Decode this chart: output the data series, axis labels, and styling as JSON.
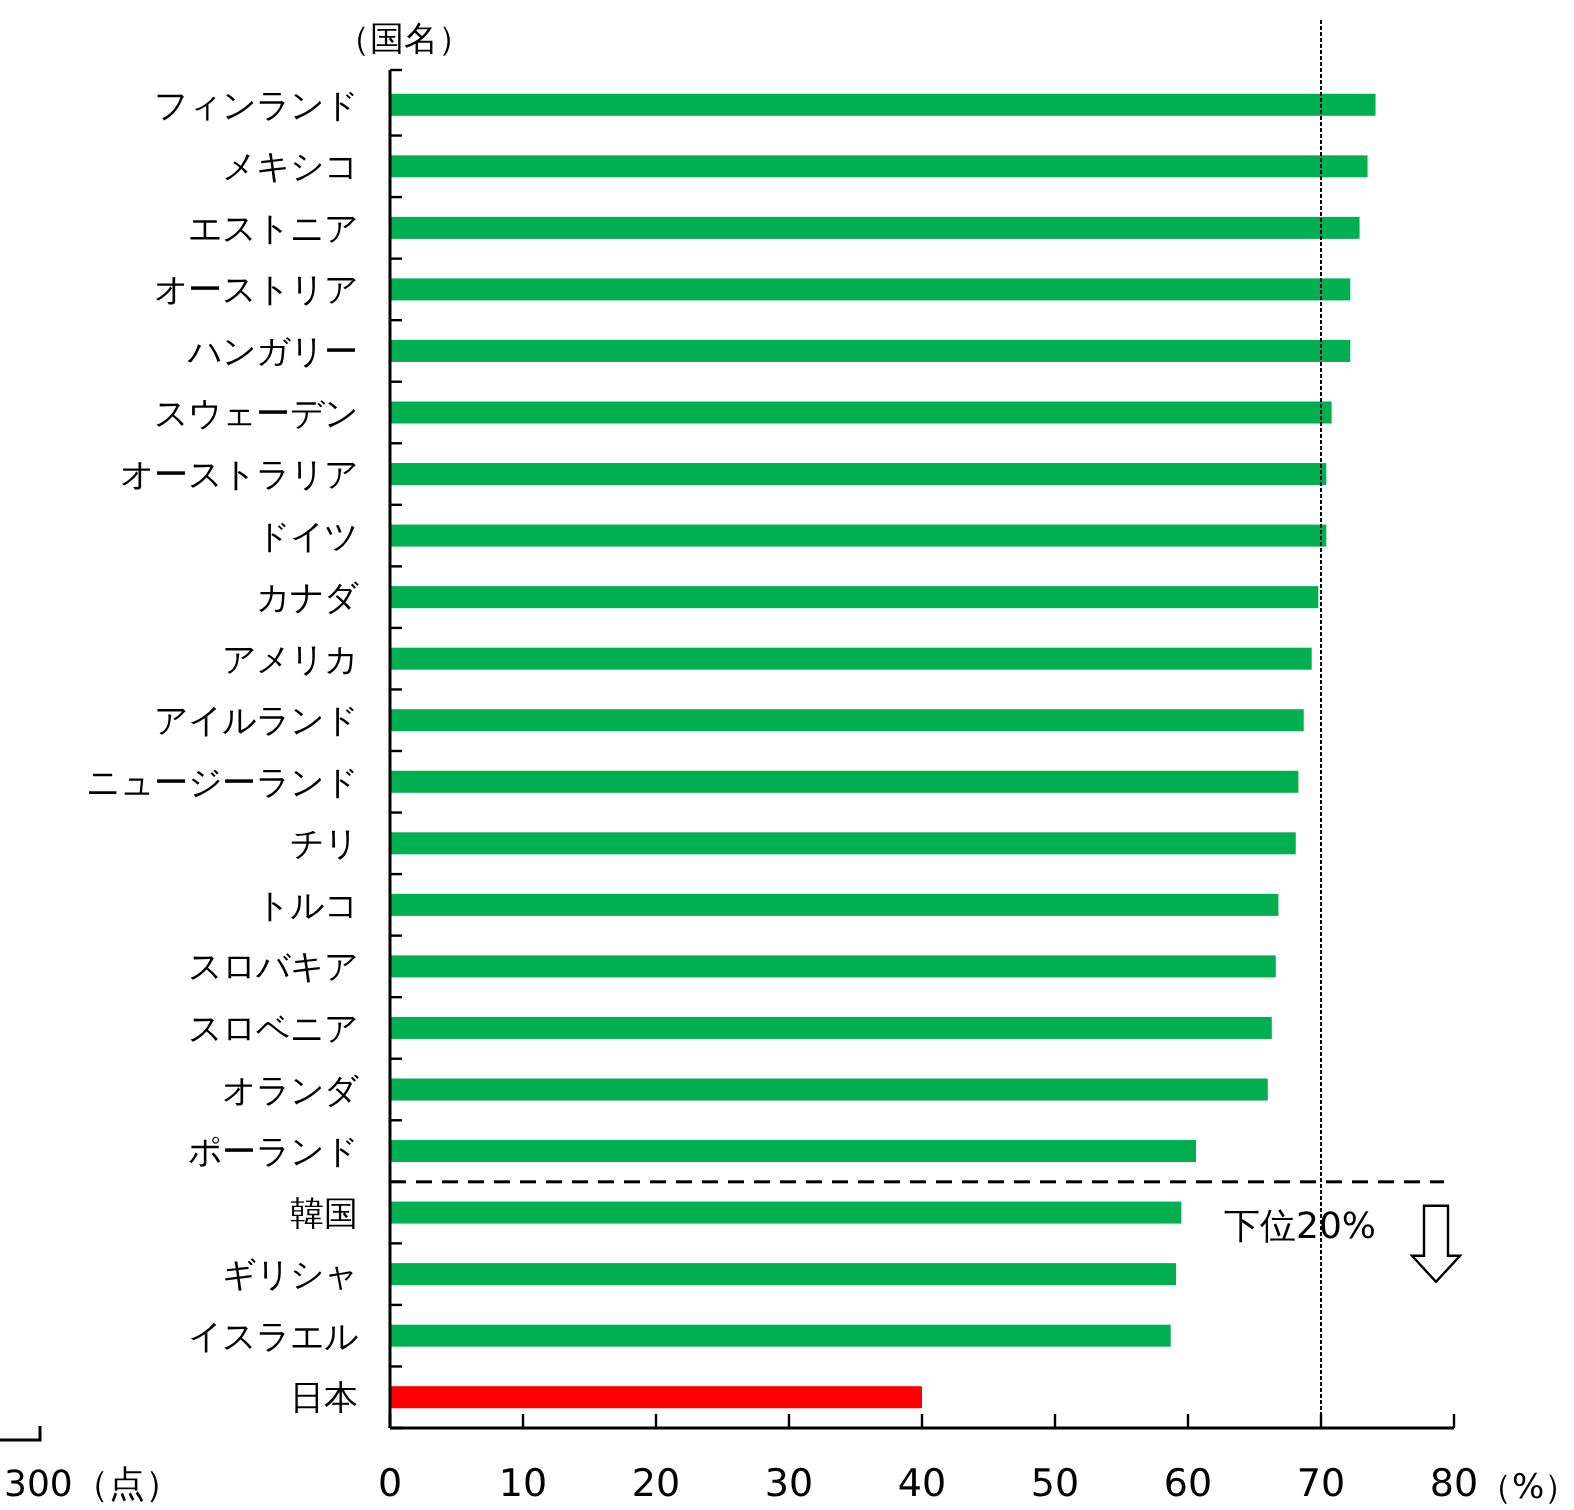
{
  "chart_data": {
    "type": "bar",
    "orientation": "horizontal",
    "ylabel": "（国名）",
    "xlabel": "（%）",
    "categories": [
      "フィンランド",
      "メキシコ",
      "エストニア",
      "オーストリア",
      "ハンガリー",
      "スウェーデン",
      "オーストラリア",
      "ドイツ",
      "カナダ",
      "アメリカ",
      "アイルランド",
      "ニュージーランド",
      "チリ",
      "トルコ",
      "スロバキア",
      "スロベニア",
      "オランダ",
      "ポーランド",
      "韓国",
      "ギリシャ",
      "イスラエル",
      "日本"
    ],
    "values": [
      74.1,
      73.5,
      72.9,
      72.2,
      72.2,
      70.8,
      70.4,
      70.4,
      69.8,
      69.3,
      68.7,
      68.3,
      68.1,
      66.8,
      66.6,
      66.3,
      66.0,
      60.6,
      59.5,
      59.1,
      58.7,
      40
    ],
    "colors": [
      "#00b050",
      "#00b050",
      "#00b050",
      "#00b050",
      "#00b050",
      "#00b050",
      "#00b050",
      "#00b050",
      "#00b050",
      "#00b050",
      "#00b050",
      "#00b050",
      "#00b050",
      "#00b050",
      "#00b050",
      "#00b050",
      "#00b050",
      "#00b050",
      "#00b050",
      "#00b050",
      "#00b050",
      "#ff0000"
    ],
    "xlim": [
      0,
      80
    ],
    "xticks": [
      0,
      10,
      20,
      30,
      40,
      50,
      60,
      70,
      80
    ],
    "ref_lines": [
      {
        "axis": "x",
        "value": 70,
        "line_style": "dotted",
        "color": "#000000"
      }
    ],
    "annotations": [
      "下位20%",
      "300（点）"
    ]
  }
}
